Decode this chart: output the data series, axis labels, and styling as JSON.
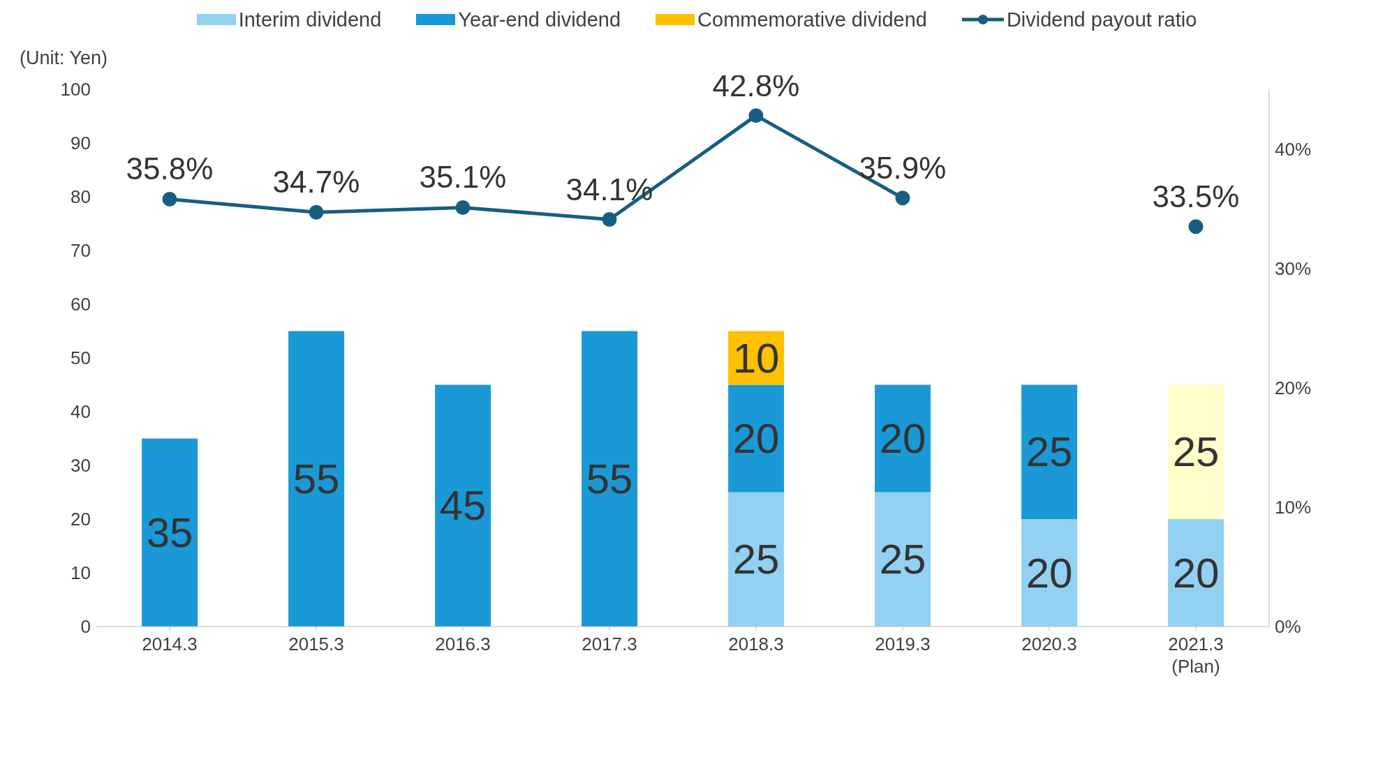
{
  "chart_data": {
    "type": "bar",
    "stacked": true,
    "categories": [
      "2014.3",
      "2015.3",
      "2016.3",
      "2017.3",
      "2018.3",
      "2019.3",
      "2020.3",
      "2021.3\n(Plan)"
    ],
    "series": [
      {
        "name": "Interim dividend",
        "color": "#92d1f1",
        "values": [
          null,
          null,
          null,
          null,
          25,
          25,
          20,
          20
        ]
      },
      {
        "name": "Year-end dividend",
        "color": "#1b98d6",
        "colors": [
          "#1b98d6",
          "#1b98d6",
          "#1b98d6",
          "#1b98d6",
          "#1b98d6",
          "#1b98d6",
          "#1b98d6",
          "#ffffcc"
        ],
        "values": [
          35,
          55,
          45,
          55,
          20,
          20,
          25,
          25
        ]
      },
      {
        "name": "Commemorative dividend",
        "color": "#ffc000",
        "values": [
          null,
          null,
          null,
          null,
          10,
          null,
          null,
          null
        ]
      },
      {
        "name": "Dividend payout ratio",
        "type": "line",
        "axis": "y2",
        "color": "#175e82",
        "marker": "circle",
        "values": [
          35.8,
          34.7,
          35.1,
          34.1,
          42.8,
          35.9,
          null,
          33.5
        ],
        "value_labels": [
          "35.8%",
          "34.7%",
          "35.1%",
          "34.1%",
          "42.8%",
          "35.9%",
          null,
          "33.5%"
        ]
      }
    ],
    "ylim": [
      0,
      100
    ],
    "yticks": [
      0,
      10,
      20,
      30,
      40,
      50,
      60,
      70,
      80,
      90,
      100
    ],
    "y2lim": [
      0,
      45
    ],
    "y2ticks": [
      {
        "value": 0,
        "label": "0%"
      },
      {
        "value": 10,
        "label": "10%"
      },
      {
        "value": 20,
        "label": "20%"
      },
      {
        "value": 30,
        "label": "30%"
      },
      {
        "value": 40,
        "label": "40%"
      }
    ],
    "data_labels": true,
    "grid": false,
    "legend": "top",
    "annotations": [
      "(Unit: Yen)"
    ]
  }
}
